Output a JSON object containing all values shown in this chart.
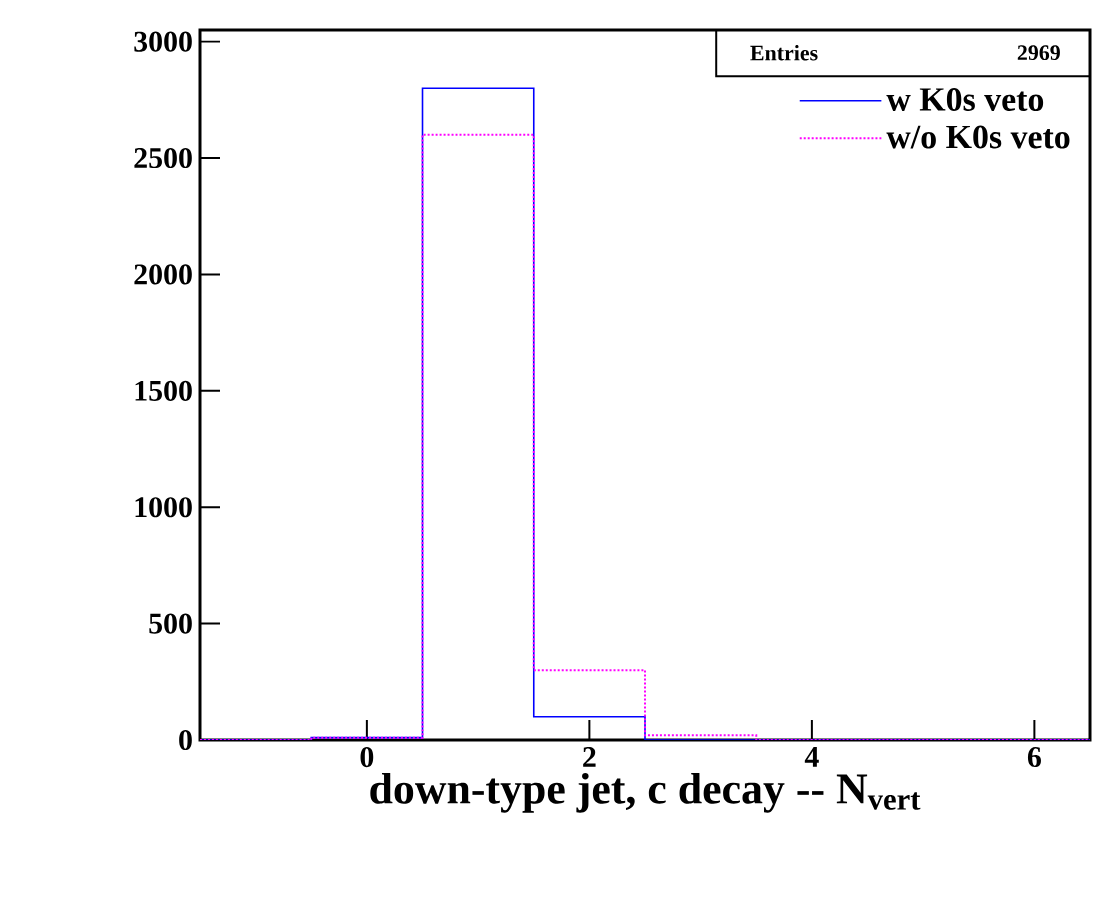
{
  "chart_data": {
    "type": "histogram",
    "xlabel": "down-type jet, c decay -- N$_{vert}$",
    "bins": [
      -1.5,
      -0.5,
      0.5,
      1.5,
      2.5,
      3.5,
      4.5,
      5.5,
      6.5
    ],
    "series": [
      {
        "name": "w K0s veto",
        "color": "#0000ff",
        "line_style": "solid",
        "values": [
          0,
          10,
          2800,
          100,
          0,
          0,
          0,
          0
        ]
      },
      {
        "name": "w/o K0s veto",
        "color": "#ff00ff",
        "line_style": "dotted",
        "values": [
          0,
          10,
          2600,
          300,
          20,
          0,
          0,
          0
        ]
      }
    ],
    "xlim": [
      -1.5,
      6.5
    ],
    "xticks": [
      0,
      2,
      4,
      6
    ],
    "ylim": [
      0,
      3050
    ],
    "yticks": [
      0,
      500,
      1000,
      1500,
      2000,
      2500,
      3000
    ],
    "annotations": [
      "Entries",
      "2969"
    ],
    "legend": "top right",
    "grid": false
  }
}
